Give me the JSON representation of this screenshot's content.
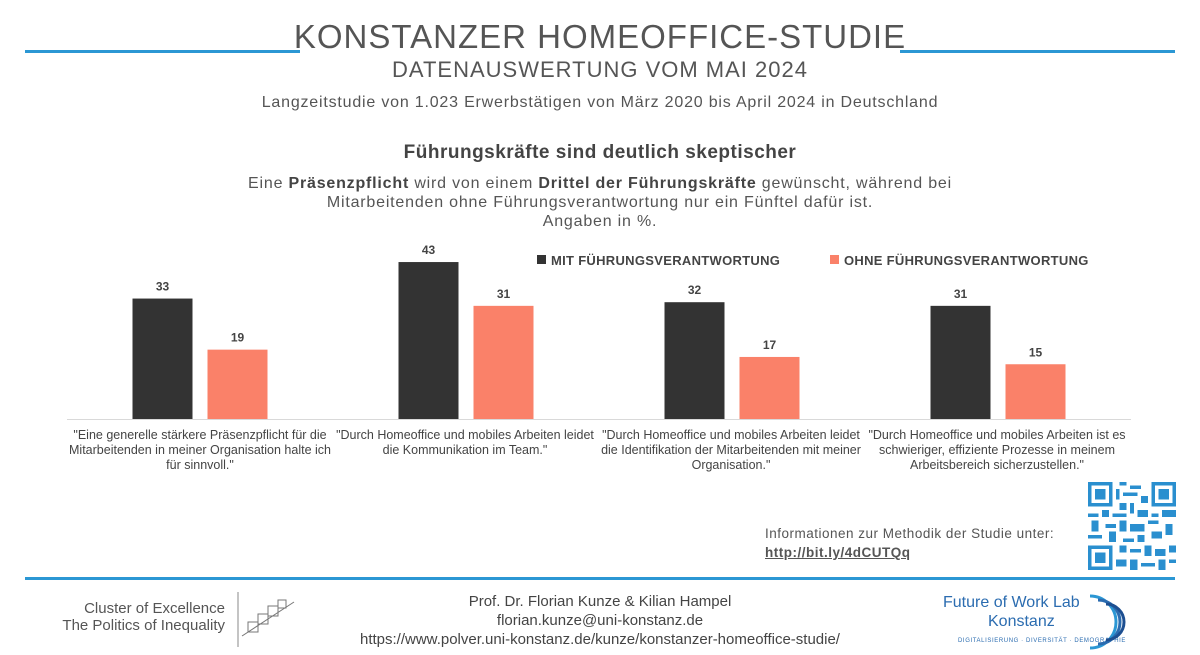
{
  "header": {
    "title": "KONSTANZER HOMEOFFICE-STUDIE",
    "subtitle": "DATENAUSWERTUNG VOM MAI 2024",
    "study_note": "Langzeitstudie von 1.023 Erwerbstätigen von März 2020 bis April 2024 in Deutschland"
  },
  "section": {
    "heading": "Führungskräfte sind deutlich skeptischer",
    "desc_1": "Eine ",
    "desc_2": "Präsenzpflicht",
    "desc_3": " wird von einem ",
    "desc_4": "Drittel der Führungskräfte",
    "desc_5": " gewünscht, während bei Mitarbeitenden ohne Führungsverantwortung nur ein Fünftel dafür ist.",
    "desc_6": "Angaben in %."
  },
  "chart_data": {
    "type": "bar",
    "title": "",
    "xlabel": "",
    "ylabel": "",
    "ylim": [
      0,
      50
    ],
    "grid": false,
    "legend_position": "top-right",
    "categories": [
      "\"Eine generelle stärkere Präsenzpflicht für die Mitarbeitenden in meiner Organisation halte ich für sinnvoll.\"",
      "\"Durch Homeoffice und mobiles Arbeiten leidet die Kommunikation im Team.\"",
      "\"Durch Homeoffice und mobiles Arbeiten leidet die Identifikation der Mitarbeitenden mit meiner Organisation.\"",
      "\"Durch Homeoffice und mobiles Arbeiten ist es schwieriger, effiziente Prozesse in meinem Arbeitsbereich sicherzustellen.\""
    ],
    "series": [
      {
        "name": "MIT FÜHRUNGSVERANTWORTUNG",
        "color": "#333333",
        "values": [
          33,
          43,
          32,
          31
        ]
      },
      {
        "name": "OHNE FÜHRUNGSVERANTWORTUNG",
        "color": "#fa8169",
        "values": [
          19,
          31,
          17,
          15
        ]
      }
    ]
  },
  "info": {
    "label": "Informationen zur Methodik der Studie unter:",
    "link": "http://bit.ly/4dCUTQq"
  },
  "footer": {
    "cluster_line1": "Cluster of Excellence",
    "cluster_line2": "The Politics of Inequality",
    "authors": "Prof. Dr. Florian Kunze & Kilian Hampel",
    "email": "florian.kunze@uni-konstanz.de",
    "url": "https://www.polver.uni-konstanz.de/kunze/konstanzer-homeoffice-studie/",
    "lab_line1": "Future of Work Lab",
    "lab_line2": "Konstanz",
    "lab_tagline": "DIGITALISIERUNG · DIVERSITÄT · DEMOGRAPHIE"
  },
  "colors": {
    "accent": "#2b97d4",
    "dark_bar": "#333333",
    "light_bar": "#fa8169"
  }
}
